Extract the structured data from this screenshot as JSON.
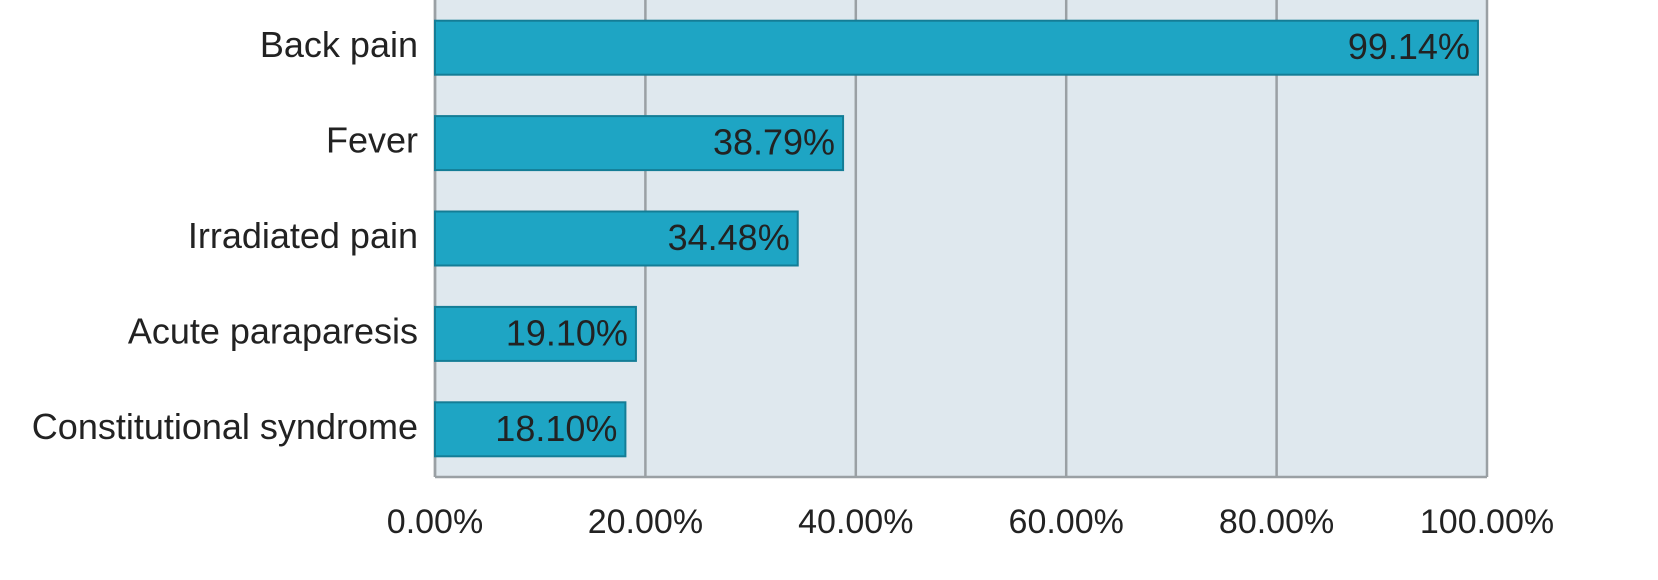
{
  "chart_data": {
    "type": "bar",
    "orientation": "horizontal",
    "categories": [
      "Back pain",
      "Fever",
      "Irradiated pain",
      "Acute paraparesis",
      "Constitutional syndrome"
    ],
    "values": [
      99.14,
      38.79,
      34.48,
      19.1,
      18.1
    ],
    "value_labels": [
      "99.14%",
      "38.79%",
      "34.48%",
      "19.10%",
      "18.10%"
    ],
    "color": "#1ea5c4",
    "xlim": [
      0,
      100
    ],
    "xticks": [
      {
        "value": 0,
        "label": "0.00%"
      },
      {
        "value": 20,
        "label": "20.00%"
      },
      {
        "value": 40,
        "label": "40.00%"
      },
      {
        "value": 60,
        "label": "60.00%"
      },
      {
        "value": 80,
        "label": "80.00%"
      },
      {
        "value": 100,
        "label": "100.00%"
      }
    ],
    "grid": true
  }
}
